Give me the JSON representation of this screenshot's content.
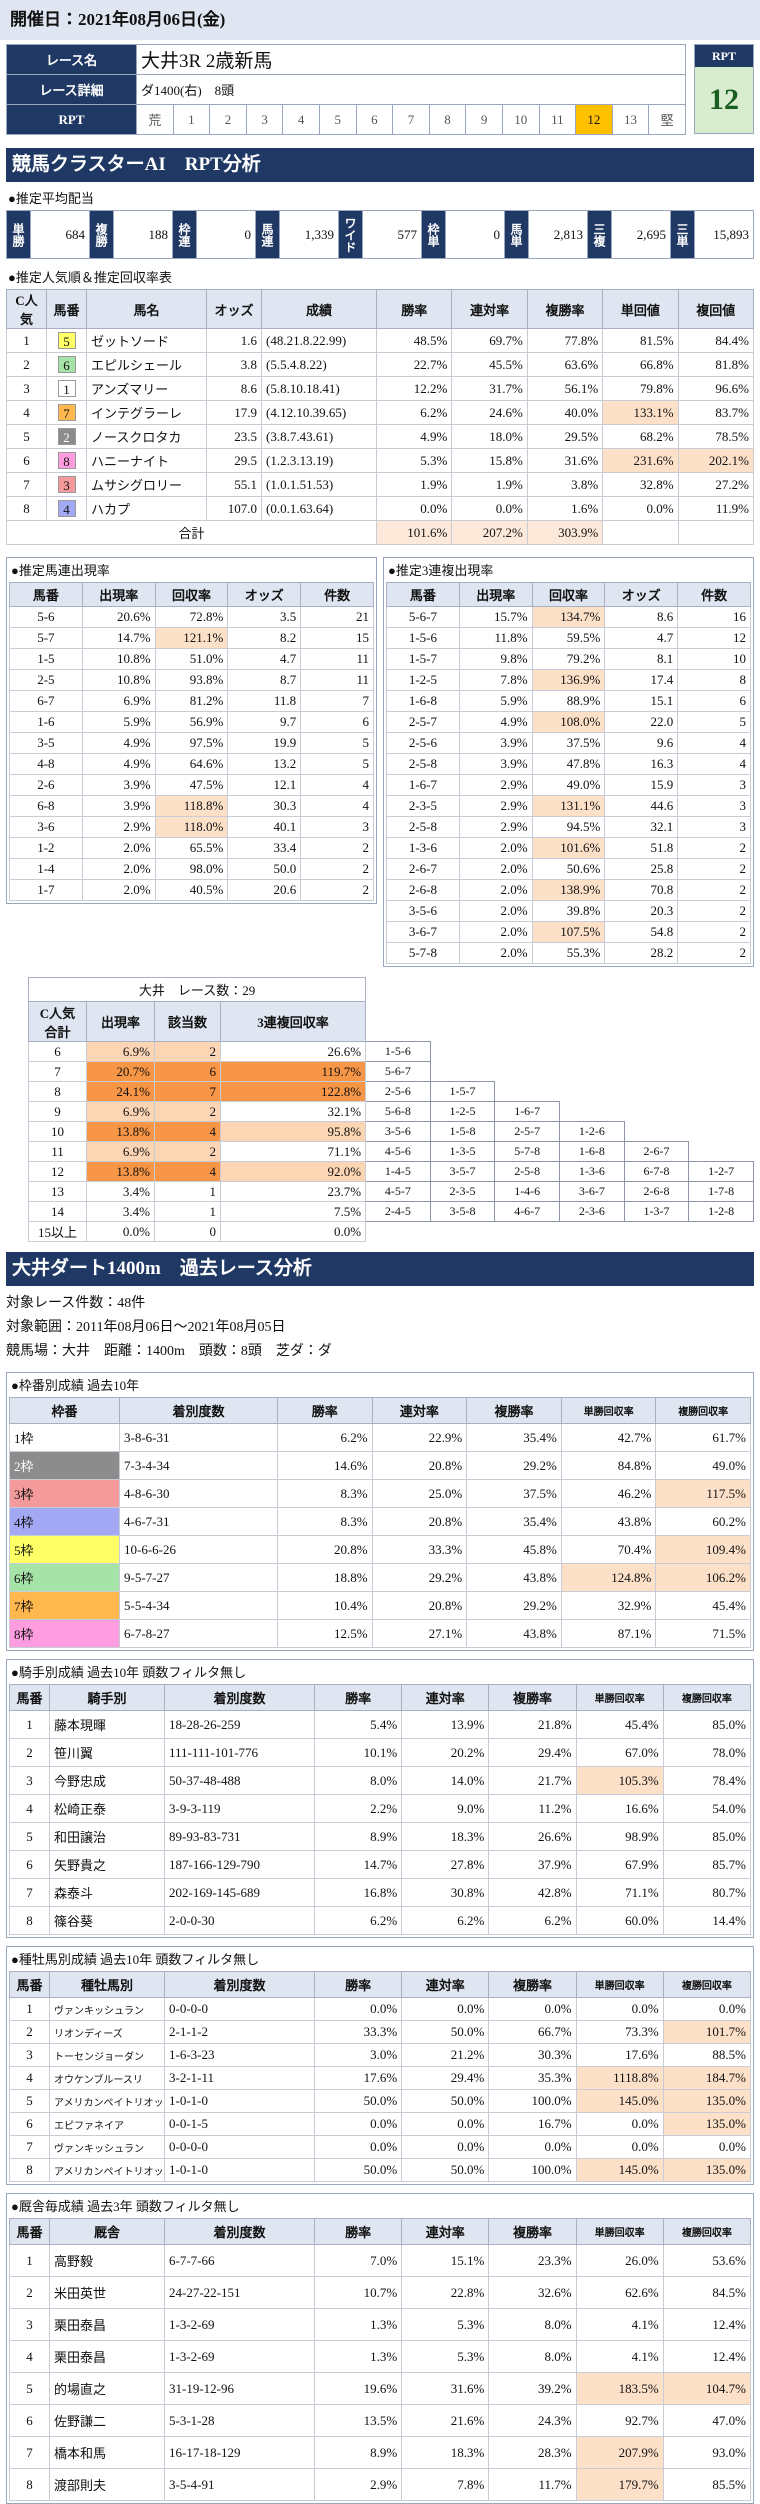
{
  "header": {
    "date": "開催日：2021年08月06日(金)"
  },
  "race": {
    "name_label": "レース名",
    "name": "大井3R 2歳新馬",
    "detail_label": "レース詳細",
    "detail": "ダ1400(右)　8頭",
    "rpt_label": "RPT",
    "rpt_scale": [
      "荒",
      "1",
      "2",
      "3",
      "4",
      "5",
      "6",
      "7",
      "8",
      "9",
      "10",
      "11",
      "12",
      "13",
      "堅"
    ],
    "rpt_box_label": "RPT",
    "rpt_value": "12"
  },
  "ai": {
    "title": "競馬クラスターAI　RPT分析",
    "payout": {
      "title": "●推定平均配当",
      "items": [
        [
          "単勝",
          "684"
        ],
        [
          "複勝",
          "188"
        ],
        [
          "枠連",
          "0"
        ],
        [
          "馬連",
          "1,339"
        ],
        [
          "ワイド",
          "577"
        ],
        [
          "枠単",
          "0"
        ],
        [
          "馬単",
          "2,813"
        ],
        [
          "三複",
          "2,695"
        ],
        [
          "三単",
          "15,893"
        ]
      ]
    },
    "popularity": {
      "title": "●推定人気順＆推定回収率表",
      "columns": [
        "C人気",
        "馬番",
        "馬名",
        "オッズ",
        "成績",
        "勝率",
        "連対率",
        "複勝率",
        "単回値",
        "複回値"
      ],
      "rows": [
        [
          "1",
          "5",
          "ゼットソード",
          "1.6",
          "(48.21.8.22.99)",
          "48.5%",
          "69.7%",
          "77.8%",
          "81.5%",
          "84.4%"
        ],
        [
          "2",
          "6",
          "エピルシェール",
          "3.8",
          "(5.5.4.8.22)",
          "22.7%",
          "45.5%",
          "63.6%",
          "66.8%",
          "81.8%"
        ],
        [
          "3",
          "1",
          "アンズマリー",
          "8.6",
          "(5.8.10.18.41)",
          "12.2%",
          "31.7%",
          "56.1%",
          "79.8%",
          "96.6%"
        ],
        [
          "4",
          "7",
          "インテグラーレ",
          "17.9",
          "(4.12.10.39.65)",
          "6.2%",
          "24.6%",
          "40.0%",
          "133.1%",
          "83.7%"
        ],
        [
          "5",
          "2",
          "ノースクロタカ",
          "23.5",
          "(3.8.7.43.61)",
          "4.9%",
          "18.0%",
          "29.5%",
          "68.2%",
          "78.5%"
        ],
        [
          "6",
          "8",
          "ハニーナイト",
          "29.5",
          "(1.2.3.13.19)",
          "5.3%",
          "15.8%",
          "31.6%",
          "231.6%",
          "202.1%"
        ],
        [
          "7",
          "3",
          "ムサシグロリー",
          "55.1",
          "(1.0.1.51.53)",
          "1.9%",
          "1.9%",
          "3.8%",
          "32.8%",
          "27.2%"
        ],
        [
          "8",
          "4",
          "ハカプ",
          "107.0",
          "(0.0.1.63.64)",
          "0.0%",
          "0.0%",
          "1.6%",
          "0.0%",
          "11.9%"
        ]
      ],
      "total": {
        "label": "合計",
        "values": [
          "101.6%",
          "207.2%",
          "303.9%"
        ]
      }
    },
    "umaren": {
      "title": "●推定馬連出現率",
      "columns": [
        "馬番",
        "出現率",
        "回収率",
        "オッズ",
        "件数"
      ],
      "rows": [
        [
          "5-6",
          "20.6%",
          "72.8%",
          "3.5",
          "21"
        ],
        [
          "5-7",
          "14.7%",
          "121.1%",
          "8.2",
          "15"
        ],
        [
          "1-5",
          "10.8%",
          "51.0%",
          "4.7",
          "11"
        ],
        [
          "2-5",
          "10.8%",
          "93.8%",
          "8.7",
          "11"
        ],
        [
          "6-7",
          "6.9%",
          "81.2%",
          "11.8",
          "7"
        ],
        [
          "1-6",
          "5.9%",
          "56.9%",
          "9.7",
          "6"
        ],
        [
          "3-5",
          "4.9%",
          "97.5%",
          "19.9",
          "5"
        ],
        [
          "4-8",
          "4.9%",
          "64.6%",
          "13.2",
          "5"
        ],
        [
          "2-6",
          "3.9%",
          "47.5%",
          "12.1",
          "4"
        ],
        [
          "6-8",
          "3.9%",
          "118.8%",
          "30.3",
          "4"
        ],
        [
          "3-6",
          "2.9%",
          "118.0%",
          "40.1",
          "3"
        ],
        [
          "1-2",
          "2.0%",
          "65.5%",
          "33.4",
          "2"
        ],
        [
          "1-4",
          "2.0%",
          "98.0%",
          "50.0",
          "2"
        ],
        [
          "1-7",
          "2.0%",
          "40.5%",
          "20.6",
          "2"
        ]
      ]
    },
    "sanrenpuku": {
      "title": "●推定3連複出現率",
      "columns": [
        "馬番",
        "出現率",
        "回収率",
        "オッズ",
        "件数"
      ],
      "rows": [
        [
          "5-6-7",
          "15.7%",
          "134.7%",
          "8.6",
          "16"
        ],
        [
          "1-5-6",
          "11.8%",
          "59.5%",
          "4.7",
          "12"
        ],
        [
          "1-5-7",
          "9.8%",
          "79.2%",
          "8.1",
          "10"
        ],
        [
          "1-2-5",
          "7.8%",
          "136.9%",
          "17.4",
          "8"
        ],
        [
          "1-6-8",
          "5.9%",
          "88.9%",
          "15.1",
          "6"
        ],
        [
          "2-5-7",
          "4.9%",
          "108.0%",
          "22.0",
          "5"
        ],
        [
          "2-5-6",
          "3.9%",
          "37.5%",
          "9.6",
          "4"
        ],
        [
          "2-5-8",
          "3.9%",
          "47.8%",
          "16.3",
          "4"
        ],
        [
          "1-6-7",
          "2.9%",
          "49.0%",
          "15.9",
          "3"
        ],
        [
          "2-3-5",
          "2.9%",
          "131.1%",
          "44.6",
          "3"
        ],
        [
          "2-5-8",
          "2.9%",
          "94.5%",
          "32.1",
          "3"
        ],
        [
          "1-3-6",
          "2.0%",
          "101.6%",
          "51.8",
          "2"
        ],
        [
          "2-6-7",
          "2.0%",
          "50.6%",
          "25.8",
          "2"
        ],
        [
          "2-6-8",
          "2.0%",
          "138.9%",
          "70.8",
          "2"
        ],
        [
          "3-5-6",
          "2.0%",
          "39.8%",
          "20.3",
          "2"
        ],
        [
          "3-6-7",
          "2.0%",
          "107.5%",
          "54.8",
          "2"
        ],
        [
          "5-7-8",
          "2.0%",
          "55.3%",
          "28.2",
          "2"
        ]
      ]
    },
    "c_popularity": {
      "caption": "大井　レース数：29",
      "columns": [
        "C人気\n合計",
        "出現率",
        "該当数",
        "3連複回収率"
      ],
      "rows": [
        {
          "cells": [
            "6",
            "6.9%",
            "2",
            "26.6%"
          ],
          "combos": [
            "1-5-6"
          ]
        },
        {
          "cells": [
            "7",
            "20.7%",
            "6",
            "119.7%"
          ],
          "combos": [
            "5-6-7"
          ]
        },
        {
          "cells": [
            "8",
            "24.1%",
            "7",
            "122.8%"
          ],
          "combos": [
            "2-5-6",
            "1-5-7"
          ]
        },
        {
          "cells": [
            "9",
            "6.9%",
            "2",
            "32.1%"
          ],
          "combos": [
            "5-6-8",
            "1-2-5",
            "1-6-7"
          ]
        },
        {
          "cells": [
            "10",
            "13.8%",
            "4",
            "95.8%"
          ],
          "combos": [
            "3-5-6",
            "1-5-8",
            "2-5-7",
            "1-2-6"
          ]
        },
        {
          "cells": [
            "11",
            "6.9%",
            "2",
            "71.1%"
          ],
          "combos": [
            "4-5-6",
            "1-3-5",
            "5-7-8",
            "1-6-8",
            "2-6-7"
          ]
        },
        {
          "cells": [
            "12",
            "13.8%",
            "4",
            "92.0%"
          ],
          "combos": [
            "1-4-5",
            "3-5-7",
            "2-5-8",
            "1-3-6",
            "6-7-8",
            "1-2-7"
          ]
        },
        {
          "cells": [
            "13",
            "3.4%",
            "1",
            "23.7%"
          ],
          "combos": [
            "4-5-7",
            "2-3-5",
            "1-4-6",
            "3-6-7",
            "2-6-8",
            "1-7-8"
          ]
        },
        {
          "cells": [
            "14",
            "3.4%",
            "1",
            "7.5%"
          ],
          "combos": [
            "2-4-5",
            "3-5-8",
            "4-6-7",
            "2-3-6",
            "1-3-7",
            "1-2-8"
          ]
        },
        {
          "cells": [
            "15以上",
            "0.0%",
            "0",
            "0.0%"
          ],
          "combos": []
        }
      ]
    }
  },
  "past": {
    "title": "大井ダート1400m　過去レース分析",
    "info": [
      "対象レース件数：48件",
      "対象範囲：2011年08月06日〜2021年08月05日",
      "競馬場：大井　距離：1400m　頭数：8頭　芝ダ：ダ"
    ],
    "waku": {
      "title": "●枠番別成績 過去10年",
      "columns": [
        "枠番",
        "着別度数",
        "勝率",
        "連対率",
        "複勝率",
        "単勝回収率",
        "複勝回収率"
      ],
      "rows": [
        [
          "1枠",
          "3-8-6-31",
          "6.2%",
          "22.9%",
          "35.4%",
          "42.7%",
          "61.7%"
        ],
        [
          "2枠",
          "7-3-4-34",
          "14.6%",
          "20.8%",
          "29.2%",
          "84.8%",
          "49.0%"
        ],
        [
          "3枠",
          "4-8-6-30",
          "8.3%",
          "25.0%",
          "37.5%",
          "46.2%",
          "117.5%"
        ],
        [
          "4枠",
          "4-6-7-31",
          "8.3%",
          "20.8%",
          "35.4%",
          "43.8%",
          "60.2%"
        ],
        [
          "5枠",
          "10-6-6-26",
          "20.8%",
          "33.3%",
          "45.8%",
          "70.4%",
          "109.4%"
        ],
        [
          "6枠",
          "9-5-7-27",
          "18.8%",
          "29.2%",
          "43.8%",
          "124.8%",
          "106.2%"
        ],
        [
          "7枠",
          "5-5-4-34",
          "10.4%",
          "20.8%",
          "29.2%",
          "32.9%",
          "45.4%"
        ],
        [
          "8枠",
          "6-7-8-27",
          "12.5%",
          "27.1%",
          "43.8%",
          "87.1%",
          "71.5%"
        ]
      ]
    },
    "jockey": {
      "title": "●騎手別成績 過去10年 頭数フィルタ無し",
      "columns": [
        "馬番",
        "騎手別",
        "着別度数",
        "勝率",
        "連対率",
        "複勝率",
        "単勝回収率",
        "複勝回収率"
      ],
      "rows": [
        [
          "1",
          "藤本現暉",
          "18-28-26-259",
          "5.4%",
          "13.9%",
          "21.8%",
          "45.4%",
          "85.0%"
        ],
        [
          "2",
          "笹川翼",
          "111-111-101-776",
          "10.1%",
          "20.2%",
          "29.4%",
          "67.0%",
          "78.0%"
        ],
        [
          "3",
          "今野忠成",
          "50-37-48-488",
          "8.0%",
          "14.0%",
          "21.7%",
          "105.3%",
          "78.4%"
        ],
        [
          "4",
          "松崎正泰",
          "3-9-3-119",
          "2.2%",
          "9.0%",
          "11.2%",
          "16.6%",
          "54.0%"
        ],
        [
          "5",
          "和田譲治",
          "89-93-83-731",
          "8.9%",
          "18.3%",
          "26.6%",
          "98.9%",
          "85.0%"
        ],
        [
          "6",
          "矢野貴之",
          "187-166-129-790",
          "14.7%",
          "27.8%",
          "37.9%",
          "67.9%",
          "85.7%"
        ],
        [
          "7",
          "森泰斗",
          "202-169-145-689",
          "16.8%",
          "30.8%",
          "42.8%",
          "71.1%",
          "80.7%"
        ],
        [
          "8",
          "篠谷葵",
          "2-0-0-30",
          "6.2%",
          "6.2%",
          "6.2%",
          "60.0%",
          "14.4%"
        ]
      ]
    },
    "sire": {
      "title": "●種牡馬別成績 過去10年 頭数フィルタ無し",
      "columns": [
        "馬番",
        "種牡馬別",
        "着別度数",
        "勝率",
        "連対率",
        "複勝率",
        "単勝回収率",
        "複勝回収率"
      ],
      "rows": [
        [
          "1",
          "ヴァンキッシュラン",
          "0-0-0-0",
          "0.0%",
          "0.0%",
          "0.0%",
          "0.0%",
          "0.0%"
        ],
        [
          "2",
          "リオンディーズ",
          "2-1-1-2",
          "33.3%",
          "50.0%",
          "66.7%",
          "73.3%",
          "101.7%"
        ],
        [
          "3",
          "トーセンジョーダン",
          "1-6-3-23",
          "3.0%",
          "21.2%",
          "30.3%",
          "17.6%",
          "88.5%"
        ],
        [
          "4",
          "オウケンブルースリ",
          "3-2-1-11",
          "17.6%",
          "29.4%",
          "35.3%",
          "1118.8%",
          "184.7%"
        ],
        [
          "5",
          "アメリカンペイトリオット",
          "1-0-1-0",
          "50.0%",
          "50.0%",
          "100.0%",
          "145.0%",
          "135.0%"
        ],
        [
          "6",
          "エピファネイア",
          "0-0-1-5",
          "0.0%",
          "0.0%",
          "16.7%",
          "0.0%",
          "135.0%"
        ],
        [
          "7",
          "ヴァンキッシュラン",
          "0-0-0-0",
          "0.0%",
          "0.0%",
          "0.0%",
          "0.0%",
          "0.0%"
        ],
        [
          "8",
          "アメリカンペイトリオット",
          "1-0-1-0",
          "50.0%",
          "50.0%",
          "100.0%",
          "145.0%",
          "135.0%"
        ]
      ]
    },
    "stable": {
      "title": "●厩舎毎成績 過去3年 頭数フィルタ無し",
      "columns": [
        "馬番",
        "厩舎",
        "着別度数",
        "勝率",
        "連対率",
        "複勝率",
        "単勝回収率",
        "複勝回収率"
      ],
      "rows": [
        [
          "1",
          "高野毅",
          "6-7-7-66",
          "7.0%",
          "15.1%",
          "23.3%",
          "26.0%",
          "53.6%"
        ],
        [
          "2",
          "米田英世",
          "24-27-22-151",
          "10.7%",
          "22.8%",
          "32.6%",
          "62.6%",
          "84.5%"
        ],
        [
          "3",
          "栗田泰昌",
          "1-3-2-69",
          "1.3%",
          "5.3%",
          "8.0%",
          "4.1%",
          "12.4%"
        ],
        [
          "4",
          "栗田泰昌",
          "1-3-2-69",
          "1.3%",
          "5.3%",
          "8.0%",
          "4.1%",
          "12.4%"
        ],
        [
          "5",
          "的場直之",
          "31-19-12-96",
          "19.6%",
          "31.6%",
          "39.2%",
          "183.5%",
          "104.7%"
        ],
        [
          "6",
          "佐野謙二",
          "5-3-1-28",
          "13.5%",
          "21.6%",
          "24.3%",
          "92.7%",
          "47.0%"
        ],
        [
          "7",
          "橋本和馬",
          "16-17-18-129",
          "8.9%",
          "18.3%",
          "28.3%",
          "207.9%",
          "93.0%"
        ],
        [
          "8",
          "渡部則夫",
          "3-5-4-91",
          "2.9%",
          "7.8%",
          "11.7%",
          "179.7%",
          "85.5%"
        ]
      ]
    }
  }
}
